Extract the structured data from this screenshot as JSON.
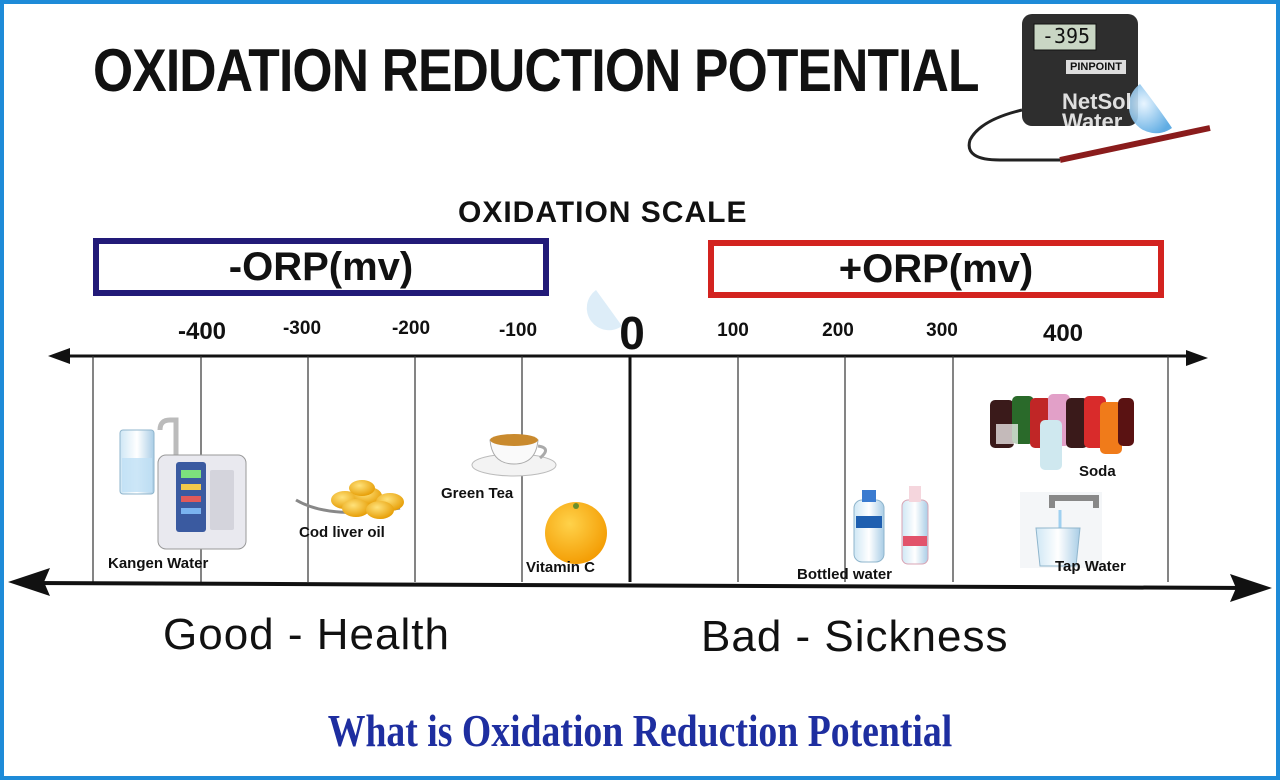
{
  "title": "OXIDATION REDUCTION POTENTIAL",
  "scale_title": "OXIDATION SCALE",
  "negative_box": "-ORP(mv)",
  "positive_box": "+ORP(mv)",
  "zero_label": "0",
  "ticks": {
    "neg400": "-400",
    "neg300": "-300",
    "neg200": "-200",
    "neg100": "-100",
    "pos100": "100",
    "pos200": "200",
    "pos300": "300",
    "pos400": "400"
  },
  "items": {
    "kangen": "Kangen Water",
    "cod": "Cod liver oil",
    "green_tea": "Green Tea",
    "vitamin_c": "Vitamin C",
    "bottled": "Bottled water",
    "soda": "Soda",
    "tap": "Tap Water"
  },
  "verdicts": {
    "good": "Good - Health",
    "bad": "Bad - Sickness"
  },
  "meter": {
    "display": "-395",
    "brand": "PINPOINT",
    "watermark_line1": "NetSol",
    "watermark_line2": "Water"
  },
  "caption": "What is Oxidation Reduction Potential",
  "colors": {
    "border": "#1e8bd8",
    "negative_box": "#221a78",
    "positive_box": "#d3231f",
    "caption": "#1e2ea0"
  }
}
